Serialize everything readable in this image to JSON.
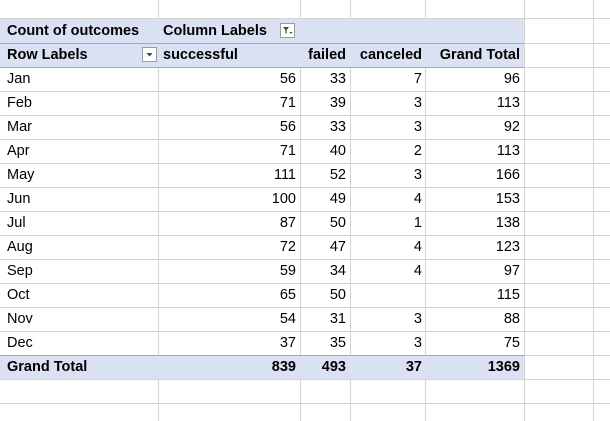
{
  "pivot": {
    "value_label": "Count of outcomes",
    "column_labels": "Column Labels",
    "row_labels": "Row Labels",
    "columns": [
      "successful",
      "failed",
      "canceled",
      "Grand Total"
    ],
    "rows": [
      {
        "label": "Jan",
        "successful": "56",
        "failed": "33",
        "canceled": "7",
        "total": "96"
      },
      {
        "label": "Feb",
        "successful": "71",
        "failed": "39",
        "canceled": "3",
        "total": "113"
      },
      {
        "label": "Mar",
        "successful": "56",
        "failed": "33",
        "canceled": "3",
        "total": "92"
      },
      {
        "label": "Apr",
        "successful": "71",
        "failed": "40",
        "canceled": "2",
        "total": "113"
      },
      {
        "label": "May",
        "successful": "111",
        "failed": "52",
        "canceled": "3",
        "total": "166"
      },
      {
        "label": "Jun",
        "successful": "100",
        "failed": "49",
        "canceled": "4",
        "total": "153"
      },
      {
        "label": "Jul",
        "successful": "87",
        "failed": "50",
        "canceled": "1",
        "total": "138"
      },
      {
        "label": "Aug",
        "successful": "72",
        "failed": "47",
        "canceled": "4",
        "total": "123"
      },
      {
        "label": "Sep",
        "successful": "59",
        "failed": "34",
        "canceled": "4",
        "total": "97"
      },
      {
        "label": "Oct",
        "successful": "65",
        "failed": "50",
        "canceled": "",
        "total": "115"
      },
      {
        "label": "Nov",
        "successful": "54",
        "failed": "31",
        "canceled": "3",
        "total": "88"
      },
      {
        "label": "Dec",
        "successful": "37",
        "failed": "35",
        "canceled": "3",
        "total": "75"
      }
    ],
    "grand_total": {
      "label": "Grand Total",
      "successful": "839",
      "failed": "493",
      "canceled": "37",
      "total": "1369"
    },
    "icons": {
      "column_filter": "filter-dropdown-icon",
      "row_filter": "chevron-down-icon"
    },
    "colors": {
      "header_band": "#d9e1f2",
      "band_border": "#8ea9db",
      "gridline": "#d4d4d4"
    }
  }
}
